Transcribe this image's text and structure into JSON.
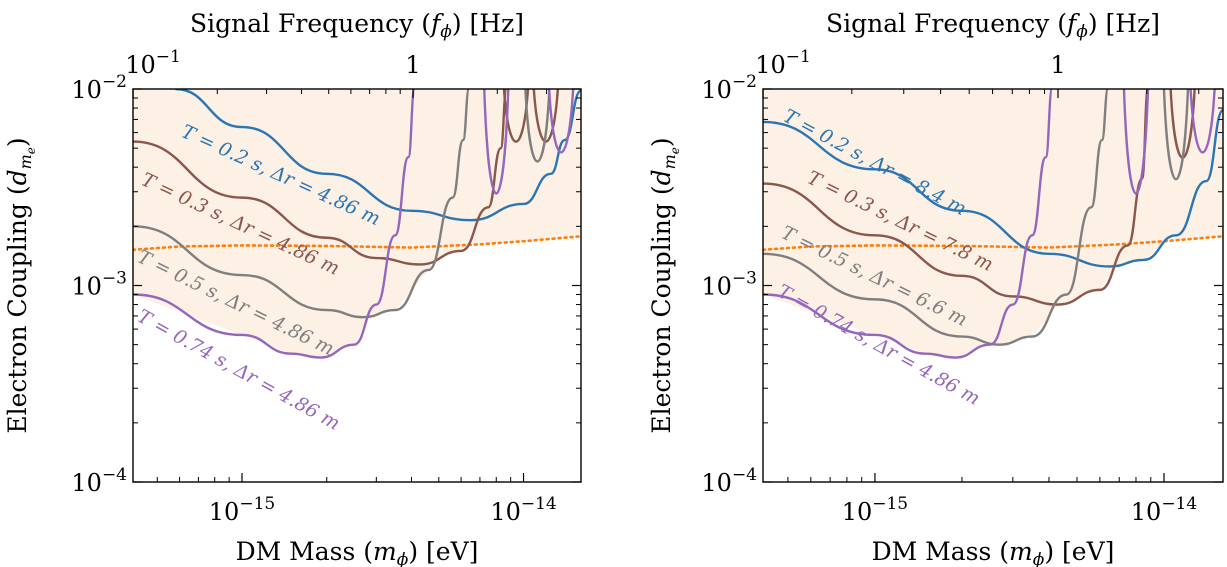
{
  "chart_data": [
    {
      "type": "line",
      "xlabel": "DM Mass (m_ϕ) [eV]",
      "ylabel": "Electron Coupling (d_{m_e})",
      "top_xlabel": "Signal Frequency (f_ϕ) [Hz]",
      "xscale": "log",
      "yscale": "log",
      "xlim": [
        4.1e-16,
        1.6e-14
      ],
      "ylim": [
        0.0001,
        0.01
      ],
      "x_ticks": [
        {
          "value": 1e-15,
          "label": "10^{-15}"
        },
        {
          "value": 1e-14,
          "label": "10^{-14}"
        }
      ],
      "y_ticks": [
        {
          "value": 0.0001,
          "label": "10^{-4}"
        },
        {
          "value": 0.001,
          "label": "10^{-3}"
        },
        {
          "value": 0.01,
          "label": "10^{-2}"
        }
      ],
      "top_x_ticks": [
        {
          "value": 0.1,
          "label": "10^{-1}"
        },
        {
          "value": 1,
          "label": "1"
        }
      ],
      "shaded_region": {
        "color": "#fdf0e4",
        "description": "excluded region above dotted line"
      },
      "dotted_bound": {
        "color": "#ff7f0e",
        "points": [
          [
            4.1e-16,
            0.00152
          ],
          [
            6e-16,
            0.00158
          ],
          [
            1e-15,
            0.0016
          ],
          [
            2e-15,
            0.00159
          ],
          [
            4e-15,
            0.00156
          ],
          [
            7e-15,
            0.00162
          ],
          [
            1e-14,
            0.00168
          ],
          [
            1.6e-14,
            0.00178
          ]
        ]
      },
      "series": [
        {
          "label": "T = 0.2 s, Δr = 4.86 m",
          "color": "#2a76b4",
          "points": [
            [
              5.8e-16,
              0.01
            ],
            [
              1e-15,
              0.0064
            ],
            [
              2e-15,
              0.0037
            ],
            [
              4e-15,
              0.0024
            ],
            [
              6.5e-15,
              0.00215
            ],
            [
              1e-14,
              0.0026
            ],
            [
              1.25e-14,
              0.0037
            ],
            [
              1.4e-14,
              0.0055
            ],
            [
              1.6e-14,
              0.0098
            ]
          ],
          "spikes": []
        },
        {
          "label": "T = 0.3 s, Δr = 4.86 m",
          "color": "#8c564b",
          "points": [
            [
              4.1e-16,
              0.0054
            ],
            [
              1e-15,
              0.0028
            ],
            [
              2e-15,
              0.00175
            ],
            [
              3e-15,
              0.00138
            ],
            [
              4.3e-15,
              0.00128
            ],
            [
              6e-15,
              0.0015
            ],
            [
              7.5e-15,
              0.0025
            ],
            [
              8.3e-15,
              0.005
            ],
            [
              8.7e-15,
              0.01
            ]
          ],
          "spikes": [
            {
              "x": 9.4e-15,
              "y_min": 0.0045
            },
            {
              "x": 1.2e-14,
              "y_min": 0.0045
            }
          ]
        },
        {
          "label": "T = 0.5 s, Δr = 4.86 m",
          "color": "#7f7f7f",
          "points": [
            [
              4.1e-16,
              0.002
            ],
            [
              1e-15,
              0.00113
            ],
            [
              2e-15,
              0.00075
            ],
            [
              2.7e-15,
              0.00069
            ],
            [
              3.5e-15,
              0.00075
            ],
            [
              4.6e-15,
              0.0012
            ],
            [
              5.6e-15,
              0.0028
            ],
            [
              6.1e-15,
              0.0055
            ],
            [
              6.4e-15,
              0.01
            ]
          ],
          "spikes": [
            {
              "x": 1.12e-14,
              "y_min": 0.0033
            }
          ]
        },
        {
          "label": "T = 0.74 s, Δr = 4.86 m",
          "color": "#9467bd",
          "points": [
            [
              4.1e-16,
              0.0009
            ],
            [
              1e-15,
              0.00056
            ],
            [
              1.5e-15,
              0.00045
            ],
            [
              1.9e-15,
              0.00043
            ],
            [
              2.5e-15,
              0.0005
            ],
            [
              3e-15,
              0.0008
            ],
            [
              3.5e-15,
              0.0018
            ],
            [
              3.9e-15,
              0.0045
            ],
            [
              4.1e-15,
              0.01
            ]
          ],
          "spikes": [
            {
              "x": 8e-15,
              "y_min": 0.002
            },
            {
              "x": 1.36e-14,
              "y_min": 0.0038
            }
          ]
        }
      ],
      "annotations": [
        {
          "text": "T = 0.2 s, Δr = 4.86 m",
          "color": "#2a76b4"
        },
        {
          "text": "T = 0.3 s, Δr = 4.86 m",
          "color": "#8c564b"
        },
        {
          "text": "T = 0.5 s, Δr = 4.86 m",
          "color": "#7f7f7f"
        },
        {
          "text": "T = 0.74 s, Δr = 4.86 m",
          "color": "#9467bd"
        }
      ]
    },
    {
      "type": "line",
      "xlabel": "DM Mass (m_ϕ) [eV]",
      "ylabel": "Electron Coupling (d_{m_e})",
      "top_xlabel": "Signal Frequency (f_ϕ) [Hz]",
      "xscale": "log",
      "yscale": "log",
      "xlim": [
        4.1e-16,
        1.6e-14
      ],
      "ylim": [
        0.0001,
        0.01
      ],
      "x_ticks": [
        {
          "value": 1e-15,
          "label": "10^{-15}"
        },
        {
          "value": 1e-14,
          "label": "10^{-14}"
        }
      ],
      "y_ticks": [
        {
          "value": 0.0001,
          "label": "10^{-4}"
        },
        {
          "value": 0.001,
          "label": "10^{-3}"
        },
        {
          "value": 0.01,
          "label": "10^{-2}"
        }
      ],
      "top_x_ticks": [
        {
          "value": 0.1,
          "label": "10^{-1}"
        },
        {
          "value": 1,
          "label": "1"
        }
      ],
      "shaded_region": {
        "color": "#fdf0e4",
        "description": "excluded region above dotted line"
      },
      "dotted_bound": {
        "color": "#ff7f0e",
        "points": [
          [
            4.1e-16,
            0.00152
          ],
          [
            6e-16,
            0.00158
          ],
          [
            1e-15,
            0.0016
          ],
          [
            2e-15,
            0.00159
          ],
          [
            4e-15,
            0.00156
          ],
          [
            7e-15,
            0.00162
          ],
          [
            1e-14,
            0.00168
          ],
          [
            1.6e-14,
            0.00178
          ]
        ]
      },
      "series": [
        {
          "label": "T = 0.2 s, Δr = 8.4 m",
          "color": "#2a76b4",
          "points": [
            [
              4.1e-16,
              0.0068
            ],
            [
              1e-15,
              0.0039
            ],
            [
              2e-15,
              0.0024
            ],
            [
              4e-15,
              0.00145
            ],
            [
              6.5e-15,
              0.00125
            ],
            [
              8.5e-15,
              0.00135
            ],
            [
              1.1e-14,
              0.0018
            ],
            [
              1.4e-14,
              0.0034
            ],
            [
              1.6e-14,
              0.0078
            ]
          ],
          "spikes": []
        },
        {
          "label": "T = 0.3 s, Δr = 7.8 m",
          "color": "#8c564b",
          "points": [
            [
              4.1e-16,
              0.0033
            ],
            [
              1e-15,
              0.0018
            ],
            [
              2e-15,
              0.00112
            ],
            [
              3e-15,
              0.00088
            ],
            [
              4.3e-15,
              0.0008
            ],
            [
              6e-15,
              0.00095
            ],
            [
              7.5e-15,
              0.0016
            ],
            [
              8.4e-15,
              0.0035
            ],
            [
              8.8e-15,
              0.01
            ]
          ],
          "spikes": [
            {
              "x": 1.16e-14,
              "y_min": 0.0035
            }
          ]
        },
        {
          "label": "T = 0.5 s, Δr = 6.6 m",
          "color": "#7f7f7f",
          "points": [
            [
              4.1e-16,
              0.00145
            ],
            [
              1e-15,
              0.00085
            ],
            [
              2e-15,
              0.00055
            ],
            [
              2.7e-15,
              0.0005
            ],
            [
              3.5e-15,
              0.00055
            ],
            [
              4.6e-15,
              0.0009
            ],
            [
              5.6e-15,
              0.0025
            ],
            [
              6.1e-15,
              0.0055
            ],
            [
              6.4e-15,
              0.01
            ]
          ],
          "spikes": [
            {
              "x": 1.1e-14,
              "y_min": 0.0025
            }
          ]
        },
        {
          "label": "T = 0.74 s, Δr = 4.86 m",
          "color": "#9467bd",
          "points": [
            [
              4.1e-16,
              0.0009
            ],
            [
              1e-15,
              0.00056
            ],
            [
              1.5e-15,
              0.00045
            ],
            [
              1.9e-15,
              0.00043
            ],
            [
              2.5e-15,
              0.0005
            ],
            [
              3e-15,
              0.0008
            ],
            [
              3.5e-15,
              0.0018
            ],
            [
              3.9e-15,
              0.0045
            ],
            [
              4.1e-15,
              0.01
            ]
          ],
          "spikes": [
            {
              "x": 8e-15,
              "y_min": 0.002
            },
            {
              "x": 1.36e-14,
              "y_min": 0.0038
            }
          ]
        }
      ],
      "annotations": [
        {
          "text": "T = 0.2 s, Δr = 8.4 m",
          "color": "#2a76b4"
        },
        {
          "text": "T = 0.3 s, Δr = 7.8 m",
          "color": "#8c564b"
        },
        {
          "text": "T = 0.5 s, Δr = 6.6 m",
          "color": "#7f7f7f"
        },
        {
          "text": "T = 0.74 s, Δr = 4.86 m",
          "color": "#9467bd"
        }
      ]
    }
  ]
}
